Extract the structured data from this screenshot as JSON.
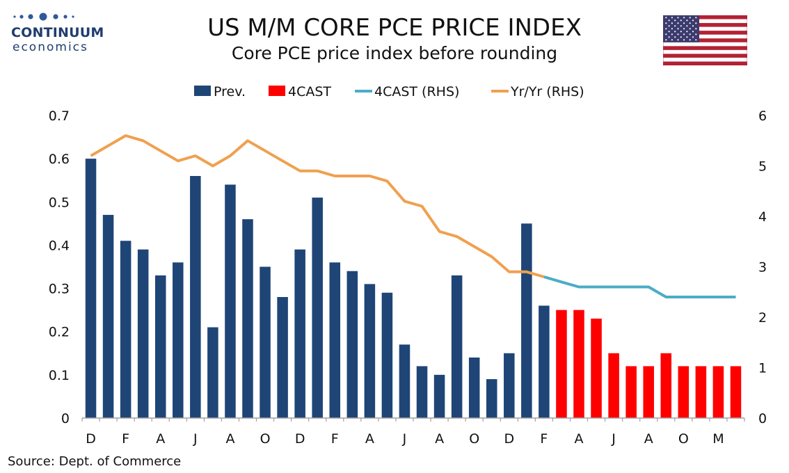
{
  "header": {
    "logo_line1": "CONTINUUM",
    "logo_line2": "economics",
    "title": "US M/M CORE PCE PRICE INDEX",
    "subtitle": "Core PCE price index before rounding",
    "flag_icon": "us-flag-icon"
  },
  "footer": {
    "source": "Source: Dept. of Commerce"
  },
  "colors": {
    "prev": "#1f4577",
    "fcast": "#ff0000",
    "fcast_line": "#4bacc6",
    "yoy_line": "#f0a050"
  },
  "chart_data": {
    "type": "bar",
    "title": "US M/M CORE PCE PRICE INDEX",
    "subtitle": "Core PCE price index before rounding",
    "legend_position": "top",
    "grid": false,
    "x_tick_labels": [
      "D",
      "F",
      "A",
      "J",
      "A",
      "O",
      "D",
      "F",
      "A",
      "J",
      "A",
      "O",
      "D",
      "F",
      "A",
      "J",
      "A",
      "O",
      "M"
    ],
    "n_periods": 38,
    "y_left": {
      "min": 0,
      "max": 0.7,
      "ticks": [
        0,
        0.1,
        0.2,
        0.3,
        0.4,
        0.5,
        0.6,
        0.7
      ]
    },
    "y_right": {
      "min": 0,
      "max": 6,
      "ticks": [
        0,
        1,
        2,
        3,
        4,
        5,
        6
      ]
    },
    "series": [
      {
        "name": "Prev.",
        "type": "bar",
        "axis": "left",
        "start_index": 0,
        "values": [
          0.6,
          0.47,
          0.41,
          0.39,
          0.33,
          0.36,
          0.56,
          0.21,
          0.54,
          0.46,
          0.35,
          0.28,
          0.39,
          0.51,
          0.36,
          0.34,
          0.31,
          0.29,
          0.17,
          0.12,
          0.1,
          0.33,
          0.14,
          0.09,
          0.15,
          0.45,
          0.26
        ]
      },
      {
        "name": "4CAST",
        "type": "bar",
        "axis": "left",
        "start_index": 27,
        "values": [
          0.25,
          0.25,
          0.23,
          0.15,
          0.12,
          0.12,
          0.15,
          0.12,
          0.12,
          0.12,
          0.12
        ]
      },
      {
        "name": "4CAST (RHS)",
        "type": "line",
        "axis": "right",
        "start_index": 26,
        "values": [
          2.8,
          2.7,
          2.6,
          2.6,
          2.6,
          2.6,
          2.6,
          2.4,
          2.4,
          2.4,
          2.4,
          2.4
        ]
      },
      {
        "name": "Yr/Yr (RHS)",
        "type": "line",
        "axis": "right",
        "start_index": 0,
        "values": [
          5.2,
          5.4,
          5.6,
          5.5,
          5.3,
          5.1,
          5.2,
          5.0,
          5.2,
          5.5,
          5.3,
          5.1,
          4.9,
          4.9,
          4.8,
          4.8,
          4.8,
          4.7,
          4.3,
          4.2,
          3.7,
          3.6,
          3.4,
          3.2,
          2.9,
          2.9,
          2.8
        ]
      }
    ]
  }
}
